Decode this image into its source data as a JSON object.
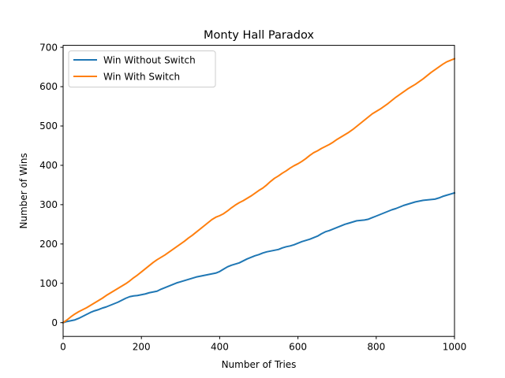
{
  "chart_data": {
    "type": "line",
    "title": "Monty Hall Paradox",
    "xlabel": "Number of Tries",
    "ylabel": "Number of Wins",
    "xlim": [
      0,
      1000
    ],
    "ylim": [
      -35,
      705
    ],
    "xticks": [
      0,
      200,
      400,
      600,
      800,
      1000
    ],
    "yticks": [
      0,
      100,
      200,
      300,
      400,
      500,
      600,
      700
    ],
    "grid": false,
    "legend_position": "upper-left",
    "series": [
      {
        "name": "Win Without Switch",
        "color": "#1f77b4",
        "x": [
          0,
          10,
          20,
          30,
          40,
          50,
          60,
          70,
          80,
          90,
          100,
          110,
          120,
          130,
          140,
          150,
          160,
          170,
          180,
          190,
          200,
          210,
          220,
          230,
          240,
          250,
          260,
          270,
          280,
          290,
          300,
          310,
          320,
          330,
          340,
          350,
          360,
          370,
          380,
          390,
          400,
          410,
          420,
          430,
          440,
          450,
          460,
          470,
          480,
          490,
          500,
          510,
          520,
          530,
          540,
          550,
          560,
          570,
          580,
          590,
          600,
          610,
          620,
          630,
          640,
          650,
          660,
          670,
          680,
          690,
          700,
          710,
          720,
          730,
          740,
          750,
          760,
          770,
          780,
          790,
          800,
          810,
          820,
          830,
          840,
          850,
          860,
          870,
          880,
          890,
          900,
          910,
          920,
          930,
          940,
          950,
          960,
          970,
          980,
          990,
          1000
        ],
        "values": [
          0,
          3,
          5,
          7,
          11,
          16,
          21,
          26,
          30,
          33,
          37,
          40,
          44,
          48,
          52,
          57,
          62,
          66,
          68,
          69,
          71,
          73,
          76,
          78,
          80,
          85,
          89,
          93,
          97,
          101,
          104,
          107,
          110,
          113,
          116,
          118,
          120,
          122,
          124,
          126,
          130,
          136,
          142,
          146,
          149,
          152,
          157,
          162,
          166,
          170,
          173,
          177,
          180,
          182,
          184,
          186,
          190,
          193,
          195,
          198,
          202,
          206,
          209,
          212,
          216,
          220,
          226,
          231,
          234,
          238,
          242,
          246,
          250,
          253,
          256,
          259,
          260,
          261,
          263,
          267,
          271,
          275,
          279,
          283,
          287,
          290,
          294,
          298,
          301,
          304,
          307,
          309,
          311,
          312,
          313,
          314,
          317,
          321,
          324,
          327,
          330
        ]
      },
      {
        "name": "Win With Switch",
        "color": "#ff7f0e",
        "x": [
          0,
          10,
          20,
          30,
          40,
          50,
          60,
          70,
          80,
          90,
          100,
          110,
          120,
          130,
          140,
          150,
          160,
          170,
          180,
          190,
          200,
          210,
          220,
          230,
          240,
          250,
          260,
          270,
          280,
          290,
          300,
          310,
          320,
          330,
          340,
          350,
          360,
          370,
          380,
          390,
          400,
          410,
          420,
          430,
          440,
          450,
          460,
          470,
          480,
          490,
          500,
          510,
          520,
          530,
          540,
          550,
          560,
          570,
          580,
          590,
          600,
          610,
          620,
          630,
          640,
          650,
          660,
          670,
          680,
          690,
          700,
          710,
          720,
          730,
          740,
          750,
          760,
          770,
          780,
          790,
          800,
          810,
          820,
          830,
          840,
          850,
          860,
          870,
          880,
          890,
          900,
          910,
          920,
          930,
          940,
          950,
          960,
          970,
          980,
          990,
          1000
        ],
        "values": [
          0,
          7,
          15,
          22,
          28,
          33,
          38,
          44,
          50,
          56,
          62,
          69,
          75,
          81,
          87,
          93,
          99,
          106,
          114,
          121,
          129,
          137,
          145,
          153,
          160,
          166,
          172,
          179,
          186,
          193,
          200,
          207,
          215,
          222,
          230,
          238,
          246,
          254,
          262,
          268,
          272,
          277,
          284,
          292,
          299,
          305,
          310,
          316,
          322,
          329,
          336,
          342,
          350,
          359,
          367,
          373,
          380,
          386,
          393,
          399,
          404,
          410,
          417,
          425,
          432,
          437,
          443,
          448,
          453,
          459,
          466,
          472,
          478,
          484,
          491,
          499,
          507,
          515,
          523,
          531,
          537,
          543,
          550,
          557,
          565,
          573,
          580,
          587,
          594,
          600,
          606,
          613,
          620,
          628,
          636,
          643,
          650,
          657,
          663,
          667,
          671
        ]
      }
    ]
  }
}
